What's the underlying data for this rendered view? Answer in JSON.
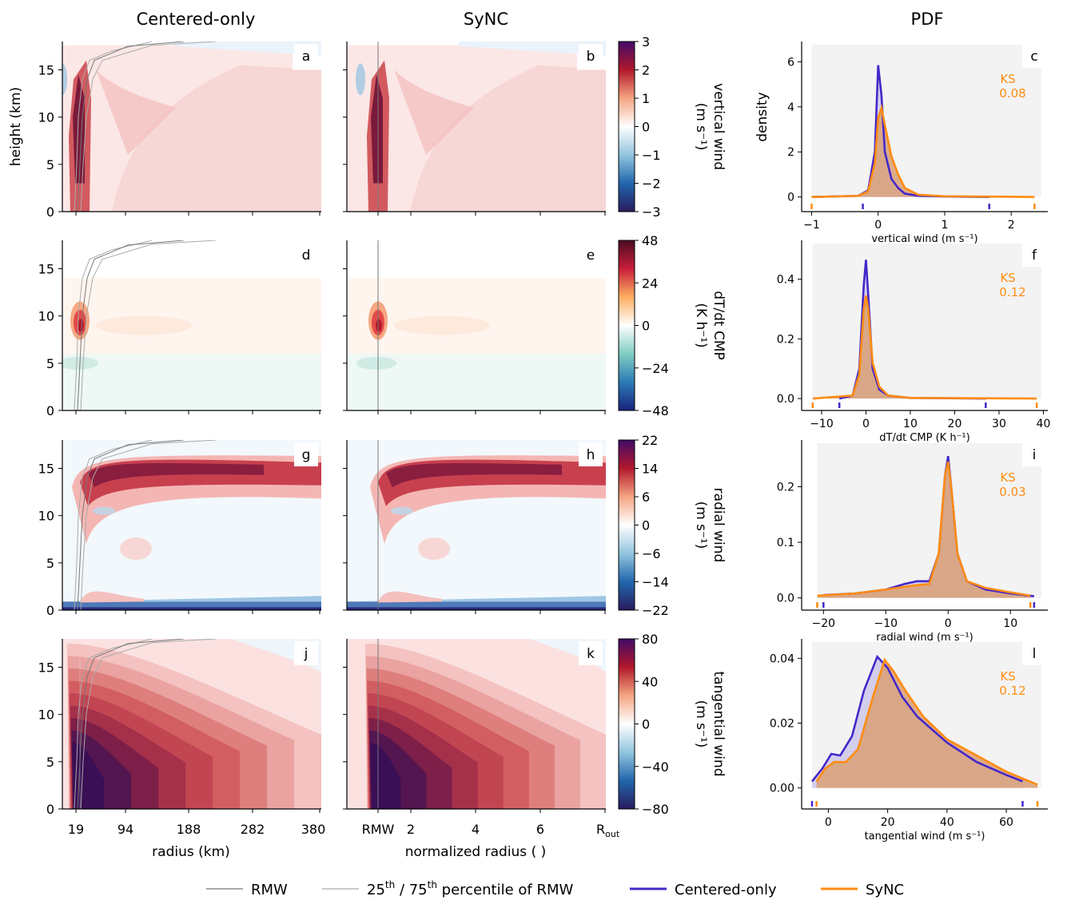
{
  "column_titles": [
    "Centered-only",
    "SyNC",
    "PDF"
  ],
  "axes": {
    "height_label": "height (km)",
    "height_ticks": [
      0,
      5,
      10,
      15
    ],
    "height_max": 18,
    "radius_label": "radius (km)",
    "radius_ticks": [
      "19",
      "94",
      "188",
      "282",
      "380"
    ],
    "norm_label": "normalized radius ( )",
    "norm_ticks": [
      "RMW",
      "2",
      "4",
      "6",
      "R"
    ],
    "norm_out_subscript": "out"
  },
  "rows": [
    {
      "var": "vertical wind",
      "unit": "(m s⁻¹)",
      "panels": [
        "a",
        "b",
        "c"
      ],
      "cbar_ticks": [
        "3",
        "2",
        "1",
        "0",
        "−1",
        "−2",
        "−3"
      ],
      "cbar_colors": [
        "#420a68",
        "#b2182b",
        "#f4a582",
        "#ffffff",
        "#92c5de",
        "#2166ac",
        "#2a1b5e"
      ],
      "pdf": {
        "xlabel": "vertical wind (m s⁻¹)",
        "xlim": [
          -1.15,
          2.55
        ],
        "ylim": [
          -0.65,
          6.9
        ],
        "xticks": [
          "−1",
          "0",
          "1",
          "2"
        ],
        "xtick_vals": [
          -1,
          0,
          1,
          2
        ],
        "yticks": [
          "0",
          "2",
          "4",
          "6"
        ],
        "ytick_vals": [
          0,
          2,
          4,
          6
        ],
        "ylabel": "density",
        "ks_label": "KS",
        "ks_value": "0.08",
        "rug_centered": [
          -0.23,
          1.67
        ],
        "rug_sync": [
          -1.0,
          2.35
        ]
      }
    },
    {
      "var": "dT/dt CMP",
      "unit": "(K h⁻¹)",
      "panels": [
        "d",
        "e",
        "f"
      ],
      "cbar_ticks": [
        "48",
        "24",
        "0",
        "−24",
        "−48"
      ],
      "cbar_colors": [
        "#4a0c22",
        "#c81e3a",
        "#fdae61",
        "#ffffff",
        "#80cdc1",
        "#2c7bb6",
        "#1a237e"
      ],
      "pdf": {
        "xlabel": "dT/dt CMP (K h⁻¹)",
        "xlim": [
          -14.5,
          41
        ],
        "ylim": [
          -0.04,
          0.53
        ],
        "xticks": [
          "−10",
          "0",
          "10",
          "20",
          "30",
          "40"
        ],
        "xtick_vals": [
          -10,
          0,
          10,
          20,
          30,
          40
        ],
        "yticks": [
          "0.0",
          "0.2",
          "0.4"
        ],
        "ytick_vals": [
          0,
          0.2,
          0.4
        ],
        "ylabel": "",
        "ks_label": "KS",
        "ks_value": "0.12",
        "rug_centered": [
          -6,
          27
        ],
        "rug_sync": [
          -12,
          38.5
        ]
      }
    },
    {
      "var": "radial wind",
      "unit": "(m s⁻¹)",
      "panels": [
        "g",
        "h",
        "i"
      ],
      "cbar_ticks": [
        "22",
        "14",
        "6",
        "0",
        "−6",
        "−14",
        "−22"
      ],
      "cbar_colors": [
        "#420a68",
        "#b2182b",
        "#f4a582",
        "#ffffff",
        "#92c5de",
        "#2166ac",
        "#2a1b5e"
      ],
      "pdf": {
        "xlabel": "radial wind (m s⁻¹)",
        "xlim": [
          -23.5,
          16
        ],
        "ylim": [
          -0.022,
          0.284
        ],
        "xticks": [
          "−20",
          "−10",
          "0",
          "10"
        ],
        "xtick_vals": [
          -20,
          -10,
          0,
          10
        ],
        "yticks": [
          "0.0",
          "0.1",
          "0.2"
        ],
        "ytick_vals": [
          0,
          0.1,
          0.2
        ],
        "ylabel": "",
        "ks_label": "KS",
        "ks_value": "0.03",
        "rug_centered": [
          -20,
          13.8
        ],
        "rug_sync": [
          -21,
          13.2
        ]
      }
    },
    {
      "var": "tangential wind",
      "unit": "(m s⁻¹)",
      "panels": [
        "j",
        "k",
        "l"
      ],
      "cbar_ticks": [
        "80",
        "40",
        "0",
        "−40",
        "−80"
      ],
      "cbar_colors": [
        "#420a68",
        "#b2182b",
        "#f4a582",
        "#ffffff",
        "#92c5de",
        "#2166ac",
        "#2a1b5e"
      ],
      "pdf": {
        "xlabel": "tangential wind (m s⁻¹)",
        "xlim": [
          -9,
          74
        ],
        "ylim": [
          -0.0065,
          0.046
        ],
        "xticks": [
          "0",
          "20",
          "40",
          "60"
        ],
        "xtick_vals": [
          0,
          20,
          40,
          60
        ],
        "yticks": [
          "0.00",
          "0.02",
          "0.04"
        ],
        "ytick_vals": [
          0,
          0.02,
          0.04
        ],
        "ylabel": "",
        "ks_label": "KS",
        "ks_value": "0.12",
        "rug_centered": [
          -5.5,
          65.5
        ],
        "rug_sync": [
          -4,
          70.5
        ]
      }
    }
  ],
  "legend": {
    "rmw": "RMW",
    "pct_prefix": "25",
    "pct_sup1": "th",
    "pct_mid": " / 75",
    "pct_sup2": "th",
    "pct_suffix": " percentile of RMW",
    "centered": "Centered-only",
    "sync": "SyNC"
  },
  "colors": {
    "centered": "#4527c9",
    "sync": "#ff8c10",
    "sync_fill": "#d9a37c",
    "centered_fill": "#c5bde8",
    "pdf_bg": "#f3f3f3",
    "rmw_line": "#777777",
    "pct_line": "#aaaaaa"
  },
  "chart_data": [
    {
      "type": "line",
      "panel": "c",
      "xlabel": "vertical wind (m s⁻¹)",
      "ylabel": "density",
      "annotation": "KS 0.08",
      "series": [
        {
          "name": "Centered-only",
          "x": [
            -1.0,
            -0.3,
            -0.15,
            -0.05,
            0.0,
            0.05,
            0.1,
            0.2,
            0.3,
            0.4,
            0.6,
            1.0,
            1.67
          ],
          "y": [
            0.0,
            0.05,
            0.3,
            2.0,
            5.85,
            4.5,
            2.0,
            0.8,
            0.4,
            0.15,
            0.05,
            0.02,
            0.0
          ]
        },
        {
          "name": "SyNC",
          "x": [
            -1.0,
            -0.3,
            -0.15,
            -0.05,
            0.0,
            0.05,
            0.1,
            0.2,
            0.3,
            0.4,
            0.6,
            1.0,
            2.35
          ],
          "y": [
            0.0,
            0.05,
            0.25,
            1.5,
            3.5,
            3.95,
            3.2,
            1.8,
            1.0,
            0.4,
            0.1,
            0.03,
            0.0
          ]
        }
      ]
    },
    {
      "type": "line",
      "panel": "f",
      "xlabel": "dT/dt CMP (K h⁻¹)",
      "annotation": "KS 0.12",
      "series": [
        {
          "name": "Centered-only",
          "x": [
            -6,
            -3,
            -1.5,
            -0.5,
            0,
            0.5,
            1.5,
            3,
            5,
            10,
            27
          ],
          "y": [
            0.0,
            0.01,
            0.1,
            0.38,
            0.465,
            0.35,
            0.1,
            0.03,
            0.01,
            0.002,
            0.0
          ]
        },
        {
          "name": "SyNC",
          "x": [
            -12,
            -3,
            -1.5,
            -0.5,
            0,
            0.5,
            1.5,
            3,
            5,
            10,
            38.5
          ],
          "y": [
            0.0,
            0.01,
            0.08,
            0.3,
            0.345,
            0.3,
            0.12,
            0.04,
            0.01,
            0.002,
            0.0
          ]
        }
      ]
    },
    {
      "type": "line",
      "panel": "i",
      "xlabel": "radial wind (m s⁻¹)",
      "annotation": "KS 0.03",
      "series": [
        {
          "name": "Centered-only",
          "x": [
            -20,
            -15,
            -10,
            -7,
            -5,
            -3,
            -1.5,
            -0.5,
            0,
            0.5,
            1.5,
            3,
            6,
            10,
            13.8
          ],
          "y": [
            0.005,
            0.008,
            0.015,
            0.025,
            0.03,
            0.03,
            0.08,
            0.22,
            0.255,
            0.2,
            0.08,
            0.03,
            0.015,
            0.008,
            0.003
          ]
        },
        {
          "name": "SyNC",
          "x": [
            -21,
            -15,
            -10,
            -7,
            -5,
            -3,
            -1.5,
            -0.5,
            0,
            0.5,
            1.5,
            3,
            6,
            10,
            13.2
          ],
          "y": [
            0.004,
            0.008,
            0.015,
            0.02,
            0.023,
            0.025,
            0.08,
            0.22,
            0.245,
            0.2,
            0.08,
            0.03,
            0.018,
            0.01,
            0.004
          ]
        }
      ]
    },
    {
      "type": "line",
      "panel": "l",
      "xlabel": "tangential wind (m s⁻¹)",
      "annotation": "KS 0.12",
      "series": [
        {
          "name": "Centered-only",
          "x": [
            -5.5,
            -2,
            1,
            4,
            8,
            12,
            16.5,
            20,
            25,
            30,
            40,
            50,
            60,
            65.5
          ],
          "y": [
            0.002,
            0.006,
            0.0105,
            0.01,
            0.016,
            0.03,
            0.0405,
            0.037,
            0.028,
            0.022,
            0.014,
            0.008,
            0.004,
            0.002
          ]
        },
        {
          "name": "SyNC",
          "x": [
            -4,
            -1,
            2,
            6,
            10,
            15,
            19,
            22,
            26,
            32,
            40,
            50,
            60,
            70.5
          ],
          "y": [
            0.002,
            0.006,
            0.008,
            0.008,
            0.012,
            0.028,
            0.0395,
            0.036,
            0.03,
            0.022,
            0.015,
            0.01,
            0.005,
            0.001
          ]
        }
      ]
    }
  ]
}
